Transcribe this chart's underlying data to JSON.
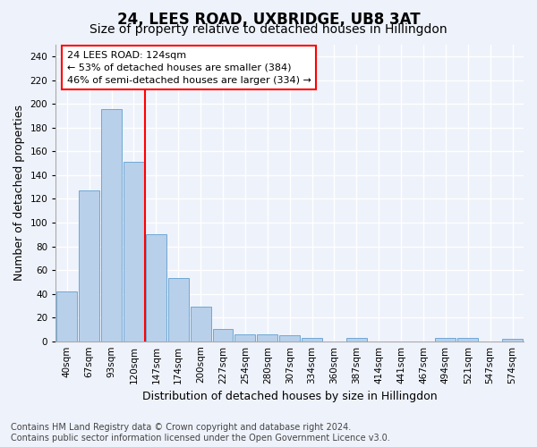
{
  "title": "24, LEES ROAD, UXBRIDGE, UB8 3AT",
  "subtitle": "Size of property relative to detached houses in Hillingdon",
  "xlabel": "Distribution of detached houses by size in Hillingdon",
  "ylabel": "Number of detached properties",
  "footer_line1": "Contains HM Land Registry data © Crown copyright and database right 2024.",
  "footer_line2": "Contains public sector information licensed under the Open Government Licence v3.0.",
  "bin_labels": [
    "40sqm",
    "67sqm",
    "93sqm",
    "120sqm",
    "147sqm",
    "174sqm",
    "200sqm",
    "227sqm",
    "254sqm",
    "280sqm",
    "307sqm",
    "334sqm",
    "360sqm",
    "387sqm",
    "414sqm",
    "441sqm",
    "467sqm",
    "494sqm",
    "521sqm",
    "547sqm",
    "574sqm"
  ],
  "bar_values": [
    42,
    127,
    196,
    151,
    90,
    53,
    29,
    10,
    6,
    6,
    5,
    3,
    0,
    3,
    0,
    0,
    0,
    3,
    3,
    0,
    2
  ],
  "bar_color": "#b8d0ea",
  "bar_edge_color": "#6fa8d4",
  "vline_color": "red",
  "vline_x": 3.0,
  "annotation_text": "24 LEES ROAD: 124sqm\n← 53% of detached houses are smaller (384)\n46% of semi-detached houses are larger (334) →",
  "annotation_box_color": "white",
  "annotation_box_edge": "red",
  "ylim": [
    0,
    250
  ],
  "yticks": [
    0,
    20,
    40,
    60,
    80,
    100,
    120,
    140,
    160,
    180,
    200,
    220,
    240
  ],
  "background_color": "#eef2fb",
  "grid_color": "white",
  "title_fontsize": 12,
  "subtitle_fontsize": 10,
  "axis_label_fontsize": 9,
  "tick_fontsize": 7.5,
  "annotation_fontsize": 8,
  "footer_fontsize": 7
}
